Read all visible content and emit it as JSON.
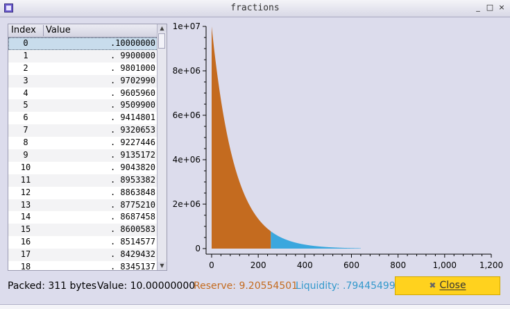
{
  "window": {
    "title": "fractions",
    "minimize": "_",
    "maximize": "□",
    "close": "×"
  },
  "table": {
    "headers": {
      "index": "Index",
      "value": "Value"
    },
    "rows": [
      {
        "index": "0",
        "value": ".10000000"
      },
      {
        "index": "1",
        "value": ". 9900000"
      },
      {
        "index": "2",
        "value": ". 9801000"
      },
      {
        "index": "3",
        "value": ". 9702990"
      },
      {
        "index": "4",
        "value": ". 9605960"
      },
      {
        "index": "5",
        "value": ". 9509900"
      },
      {
        "index": "6",
        "value": ". 9414801"
      },
      {
        "index": "7",
        "value": ". 9320653"
      },
      {
        "index": "8",
        "value": ". 9227446"
      },
      {
        "index": "9",
        "value": ". 9135172"
      },
      {
        "index": "10",
        "value": ". 9043820"
      },
      {
        "index": "11",
        "value": ". 8953382"
      },
      {
        "index": "12",
        "value": ". 8863848"
      },
      {
        "index": "13",
        "value": ". 8775210"
      },
      {
        "index": "14",
        "value": ". 8687458"
      },
      {
        "index": "15",
        "value": ". 8600583"
      },
      {
        "index": "16",
        "value": ". 8514577"
      },
      {
        "index": "17",
        "value": ". 8429432"
      },
      {
        "index": "18",
        "value": ". 8345137"
      }
    ],
    "selected_index": 0
  },
  "chart_data": {
    "type": "area",
    "title": "",
    "xlabel": "",
    "ylabel": "",
    "xlim": [
      0,
      1200
    ],
    "ylim": [
      0,
      10000000
    ],
    "x_ticks": [
      "0",
      "200",
      "400",
      "600",
      "800",
      "1,000",
      "1,200"
    ],
    "y_ticks": [
      "0",
      "2e+06",
      "4e+06",
      "6e+06",
      "8e+06",
      "1e+07"
    ],
    "function": "10000000 * 0.99^x",
    "series": [
      {
        "x_start": 0,
        "x_end": 254,
        "color": "#c46b1f"
      },
      {
        "x_start": 254,
        "x_end": 640,
        "color": "#3aa7de"
      }
    ],
    "grid": false
  },
  "status": {
    "packed": "Packed: 311 bytes",
    "value": "Value: 10.00000000",
    "reserve": "Reserve: 9.20554501",
    "liquidity": "Liquidity: .79445499",
    "reserve_color": "#c46b1f",
    "liquidity_color": "#3399cc"
  },
  "close_button": {
    "icon": "close-x-icon",
    "label": "Close"
  }
}
